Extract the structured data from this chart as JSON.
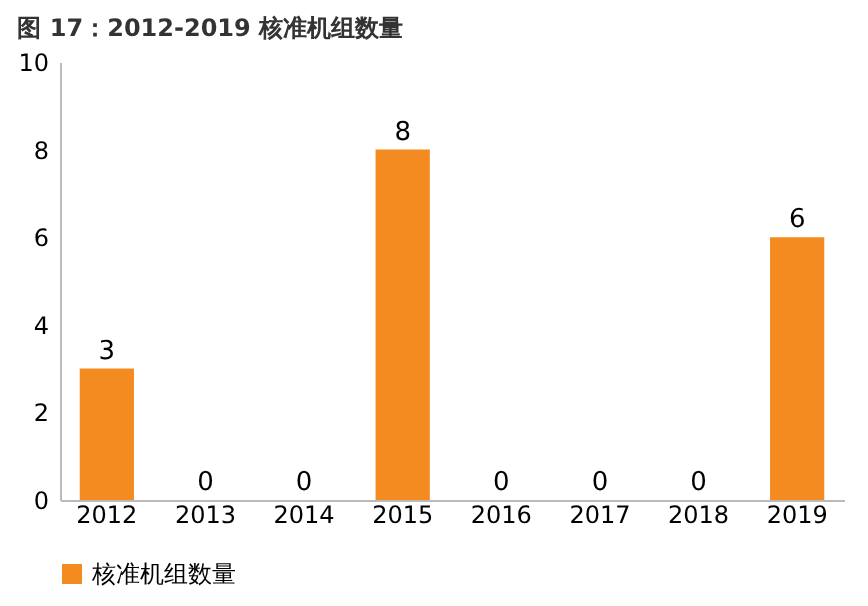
{
  "chart_data": {
    "type": "bar",
    "title": "图 17：2012-2019 核准机组数量",
    "categories": [
      "2012",
      "2013",
      "2014",
      "2015",
      "2016",
      "2017",
      "2018",
      "2019"
    ],
    "series": [
      {
        "name": "核准机组数量",
        "color": "#f38b20",
        "values": [
          3,
          0,
          0,
          8,
          0,
          0,
          0,
          6
        ]
      }
    ],
    "ylim": [
      0,
      10
    ],
    "yticks": [
      0,
      2,
      4,
      6,
      8,
      10
    ],
    "grid": false,
    "legend": "bottom",
    "data_labels": true
  }
}
